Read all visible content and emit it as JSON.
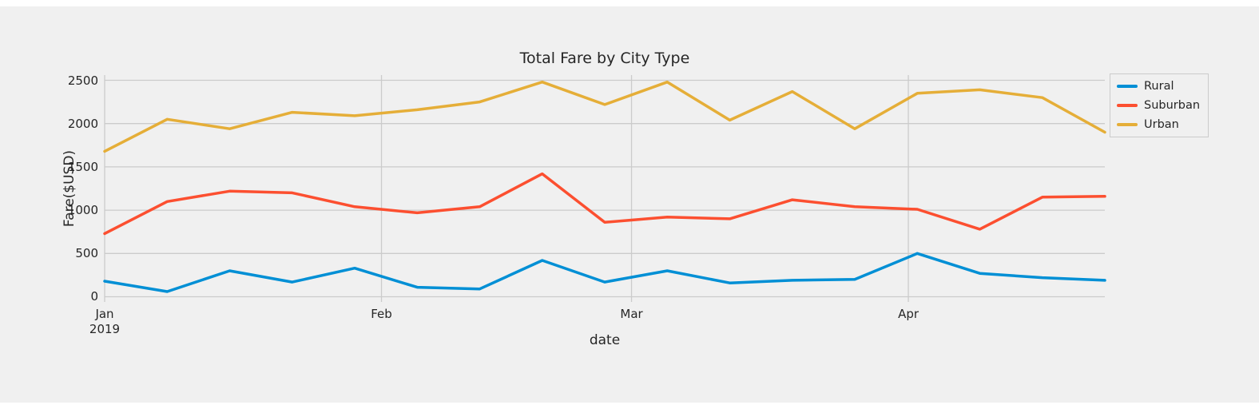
{
  "chart_data": {
    "type": "line",
    "title": "Total Fare by City Type",
    "xlabel": "date",
    "ylabel": "Fare($USD)",
    "background_color": "#f0f0f0",
    "grid": true,
    "grid_color": "#cbcbcb",
    "legend_position": "upper right, outside plot",
    "ylim": [
      0,
      2500
    ],
    "yticks": [
      0,
      500,
      1000,
      1500,
      2000,
      2500
    ],
    "xticks": [
      {
        "day": 0,
        "label": "Jan",
        "sublabel": "2019"
      },
      {
        "day": 31,
        "label": "Feb",
        "sublabel": ""
      },
      {
        "day": 59,
        "label": "Mar",
        "sublabel": ""
      },
      {
        "day": 90,
        "label": "Apr",
        "sublabel": ""
      }
    ],
    "x_day_offsets": [
      0,
      7,
      14,
      21,
      28,
      35,
      42,
      49,
      56,
      63,
      70,
      77,
      84,
      91,
      98,
      105,
      112
    ],
    "series": [
      {
        "name": "Rural",
        "color": "#008fd5",
        "values": [
          180,
          60,
          300,
          170,
          330,
          110,
          90,
          420,
          170,
          300,
          160,
          190,
          200,
          500,
          270,
          220,
          190
        ]
      },
      {
        "name": "Suburban",
        "color": "#fc4f30",
        "values": [
          730,
          1100,
          1220,
          1200,
          1040,
          970,
          1040,
          1420,
          860,
          920,
          900,
          1120,
          1040,
          1010,
          780,
          1150,
          1160
        ]
      },
      {
        "name": "Urban",
        "color": "#e5ae38",
        "values": [
          1680,
          2050,
          1940,
          2130,
          2090,
          2160,
          2250,
          2480,
          2220,
          2480,
          2040,
          2370,
          1940,
          2350,
          2390,
          2300,
          1900
        ]
      }
    ]
  }
}
